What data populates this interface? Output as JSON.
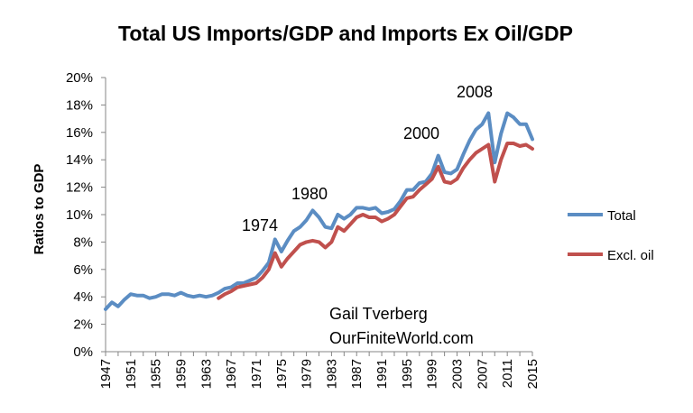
{
  "chart_data": {
    "type": "line",
    "title": "Total US Imports/GDP and Imports Ex Oil/GDP",
    "ylabel": "Ratios to GDP",
    "xlabel": "",
    "ylim": [
      0,
      20
    ],
    "y_ticks": [
      "0%",
      "2%",
      "4%",
      "6%",
      "8%",
      "10%",
      "12%",
      "14%",
      "16%",
      "18%",
      "20%"
    ],
    "x_range": [
      1947,
      2015
    ],
    "x_ticks": [
      "1947",
      "1951",
      "1955",
      "1959",
      "1963",
      "1967",
      "1971",
      "1975",
      "1979",
      "1983",
      "1987",
      "1991",
      "1995",
      "1999",
      "2003",
      "2007",
      "2011",
      "2015"
    ],
    "grid": false,
    "legend_position": "right",
    "series": [
      {
        "name": "Total",
        "color": "#5b8dc3",
        "x": [
          1947,
          1948,
          1949,
          1950,
          1951,
          1952,
          1953,
          1954,
          1955,
          1956,
          1957,
          1958,
          1959,
          1960,
          1961,
          1962,
          1963,
          1964,
          1965,
          1966,
          1967,
          1968,
          1969,
          1970,
          1971,
          1972,
          1973,
          1974,
          1975,
          1976,
          1977,
          1978,
          1979,
          1980,
          1981,
          1982,
          1983,
          1984,
          1985,
          1986,
          1987,
          1988,
          1989,
          1990,
          1991,
          1992,
          1993,
          1994,
          1995,
          1996,
          1997,
          1998,
          1999,
          2000,
          2001,
          2002,
          2003,
          2004,
          2005,
          2006,
          2007,
          2008,
          2009,
          2010,
          2011,
          2012,
          2013,
          2014,
          2015
        ],
        "values": [
          3.1,
          3.6,
          3.3,
          3.8,
          4.2,
          4.1,
          4.1,
          3.9,
          4.0,
          4.2,
          4.2,
          4.1,
          4.3,
          4.1,
          4.0,
          4.1,
          4.0,
          4.1,
          4.3,
          4.6,
          4.7,
          5.0,
          5.0,
          5.2,
          5.4,
          5.9,
          6.5,
          8.2,
          7.3,
          8.1,
          8.8,
          9.1,
          9.6,
          10.3,
          9.8,
          9.1,
          9.0,
          10.0,
          9.7,
          10.0,
          10.5,
          10.5,
          10.4,
          10.5,
          10.1,
          10.2,
          10.4,
          11.0,
          11.8,
          11.8,
          12.3,
          12.4,
          13.0,
          14.3,
          13.1,
          13.0,
          13.3,
          14.4,
          15.4,
          16.2,
          16.6,
          17.4,
          13.8,
          15.9,
          17.4,
          17.1,
          16.6,
          16.6,
          15.5
        ]
      },
      {
        "name": "Excl. oil",
        "color": "#c0504d",
        "x": [
          1965,
          1966,
          1967,
          1968,
          1969,
          1970,
          1971,
          1972,
          1973,
          1974,
          1975,
          1976,
          1977,
          1978,
          1979,
          1980,
          1981,
          1982,
          1983,
          1984,
          1985,
          1986,
          1987,
          1988,
          1989,
          1990,
          1991,
          1992,
          1993,
          1994,
          1995,
          1996,
          1997,
          1998,
          1999,
          2000,
          2001,
          2002,
          2003,
          2004,
          2005,
          2006,
          2007,
          2008,
          2009,
          2010,
          2011,
          2012,
          2013,
          2014,
          2015
        ],
        "values": [
          3.9,
          4.2,
          4.4,
          4.7,
          4.8,
          4.9,
          5.0,
          5.4,
          6.0,
          7.2,
          6.2,
          6.8,
          7.3,
          7.8,
          8.0,
          8.1,
          8.0,
          7.6,
          8.0,
          9.1,
          8.8,
          9.3,
          9.8,
          10.0,
          9.8,
          9.8,
          9.5,
          9.7,
          10.0,
          10.6,
          11.2,
          11.3,
          11.8,
          12.2,
          12.6,
          13.5,
          12.4,
          12.3,
          12.6,
          13.4,
          14.0,
          14.5,
          14.8,
          15.1,
          12.4,
          14.0,
          15.2,
          15.2,
          15.0,
          15.1,
          14.8
        ]
      }
    ],
    "annotations": {
      "y1974": "1974",
      "y1980": "1980",
      "y2000": "2000",
      "y2008": "2008",
      "author": "Gail Tverberg",
      "website": "OurFiniteWorld.com"
    }
  }
}
